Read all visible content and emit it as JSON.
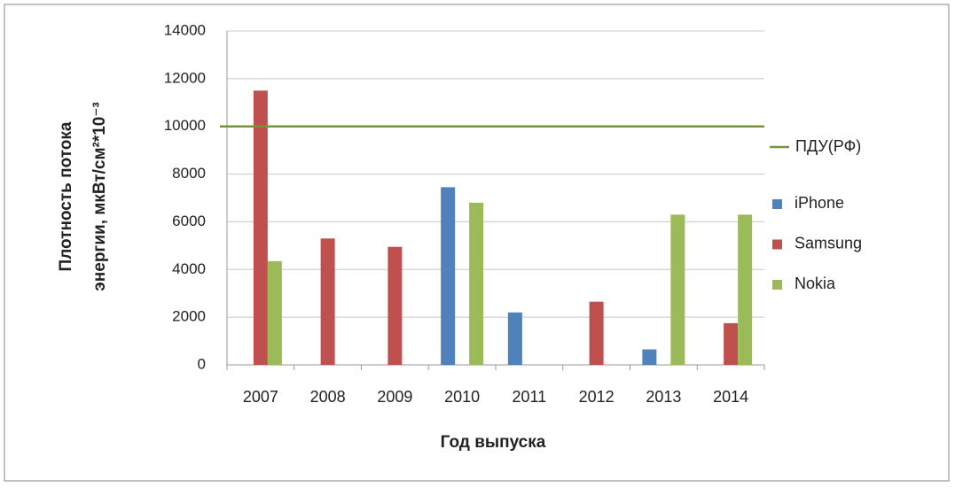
{
  "chart_data": {
    "type": "bar",
    "x_label": "Год выпуска",
    "y_label": [
      "Плотность потока",
      "энергии, мкВт/см²*10⁻³"
    ],
    "categories": [
      "2007",
      "2008",
      "2009",
      "2010",
      "2011",
      "2012",
      "2013",
      "2014"
    ],
    "series": [
      {
        "name": "iPhone",
        "color": "#4f81bd",
        "values": [
          null,
          null,
          null,
          7450,
          2200,
          null,
          650,
          null
        ]
      },
      {
        "name": "Samsung",
        "color": "#c0504d",
        "values": [
          11500,
          5300,
          4950,
          null,
          null,
          2650,
          null,
          1750
        ]
      },
      {
        "name": "Nokia",
        "color": "#9bbb59",
        "values": [
          4350,
          null,
          null,
          6800,
          null,
          null,
          6300,
          6300
        ]
      }
    ],
    "reference_lines": [
      {
        "name": "ПДУ(РФ)",
        "value": 10000,
        "color": "#77933c"
      }
    ],
    "ylim": [
      0,
      14000
    ],
    "yticks": [
      0,
      2000,
      4000,
      6000,
      8000,
      10000,
      12000,
      14000
    ],
    "grid": true,
    "legend": "right"
  }
}
